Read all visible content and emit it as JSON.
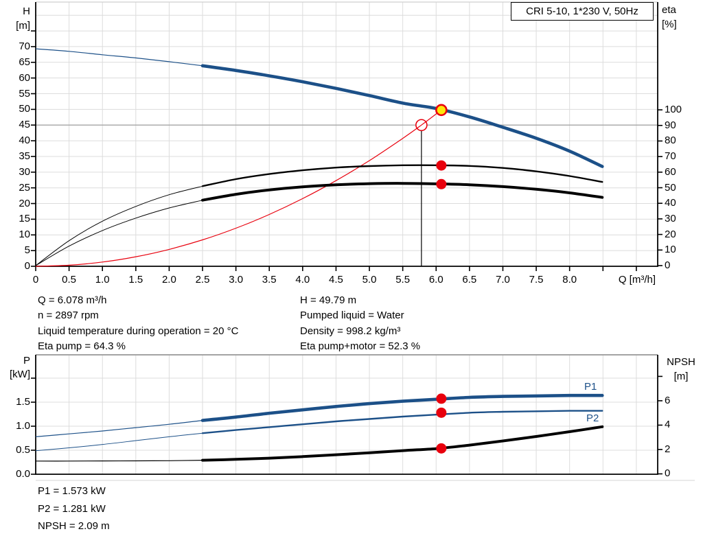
{
  "colors": {
    "curve_blue": "#1c5088",
    "curve_black": "#000000",
    "curve_red": "#e8000d",
    "marker_red": "#e8000d",
    "op_yellow": "#ffe60a",
    "grid": "#dcdcdc",
    "grid_dark": "#ababab",
    "frame_top_light": "#cfcfcf",
    "frame_top_dark": "#a3a3a3",
    "axis": "#000000"
  },
  "annotations": {
    "top_left": [
      "Q = 6.078 m³/h",
      "n = 2897 rpm",
      "Liquid temperature during operation = 20 °C",
      "Eta pump = 64.3 %"
    ],
    "top_right": [
      "H = 49.79 m",
      "Pumped liquid = Water",
      "Density = 998.2 kg/m³",
      "Eta pump+motor = 52.3 %"
    ],
    "bottom": [
      "P1 = 1.573 kW",
      "P2 = 1.281 kW",
      "NPSH = 2.09 m"
    ]
  },
  "chart_data": [
    {
      "type": "line",
      "title": "CRI 5-10, 1*230 V, 50Hz",
      "x_axis": {
        "label": "Q [m³/h]",
        "min": 0,
        "max": 9.32,
        "ticks": [
          [
            0,
            "0"
          ],
          [
            0.5,
            "0.5"
          ],
          [
            1,
            "1.0"
          ],
          [
            1.5,
            "1.5"
          ],
          [
            2,
            "2.0"
          ],
          [
            2.5,
            "2.5"
          ],
          [
            3,
            "3.0"
          ],
          [
            3.5,
            "3.5"
          ],
          [
            4,
            "4.0"
          ],
          [
            4.5,
            "4.5"
          ],
          [
            5,
            "5.0"
          ],
          [
            5.5,
            "5.5"
          ],
          [
            6,
            "6.0"
          ],
          [
            6.5,
            "6.5"
          ],
          [
            7,
            "7.0"
          ],
          [
            7.5,
            "7.5"
          ],
          [
            8,
            "8.0"
          ],
          [
            8.5,
            ""
          ],
          [
            9,
            ""
          ]
        ]
      },
      "y_left": {
        "name": "H",
        "unit": "[m]",
        "min": 0,
        "max": 84.2,
        "ticks": [
          [
            0,
            "0"
          ],
          [
            5,
            "5"
          ],
          [
            10,
            "10"
          ],
          [
            15,
            "15"
          ],
          [
            20,
            "20"
          ],
          [
            25,
            "25"
          ],
          [
            30,
            "30"
          ],
          [
            35,
            "35"
          ],
          [
            40,
            "40"
          ],
          [
            45,
            "45"
          ],
          [
            50,
            "50"
          ],
          [
            55,
            "55"
          ],
          [
            60,
            "60"
          ],
          [
            65,
            "65"
          ],
          [
            70,
            "70"
          ],
          [
            75,
            ""
          ]
        ]
      },
      "y_right": {
        "name": "eta",
        "unit": "[%]",
        "min": -0.44,
        "max": 169.2,
        "ticks": [
          [
            0,
            "0"
          ],
          [
            10,
            "10"
          ],
          [
            20,
            "20"
          ],
          [
            30,
            "30"
          ],
          [
            40,
            "40"
          ],
          [
            50,
            "50"
          ],
          [
            60,
            "60"
          ],
          [
            70,
            "70"
          ],
          [
            80,
            "80"
          ],
          [
            90,
            "90"
          ],
          [
            100,
            "100"
          ]
        ]
      },
      "grid": {
        "x_step": 0.5,
        "y_step": 5,
        "y_max": 80,
        "dark_y": 45
      },
      "duty_line": {
        "x": 5.78,
        "y": 45
      },
      "series": [
        {
          "name": "system-curve",
          "color": "#e8000d",
          "axis": "left",
          "width_thin": 1.2,
          "width_thick": null,
          "split_q": null,
          "points": [
            [
              0,
              0
            ],
            [
              0.5,
              0.34
            ],
            [
              1,
              1.35
            ],
            [
              1.5,
              3.03
            ],
            [
              2,
              5.39
            ],
            [
              2.5,
              8.42
            ],
            [
              3,
              12.13
            ],
            [
              3.5,
              16.51
            ],
            [
              4,
              21.56
            ],
            [
              4.5,
              27.29
            ],
            [
              5,
              33.69
            ],
            [
              5.5,
              40.77
            ],
            [
              5.78,
              45.0
            ],
            [
              6.078,
              49.79
            ]
          ]
        },
        {
          "name": "eta-pump-curve",
          "color": "#000000",
          "axis": "right",
          "width_thin": 1,
          "width_thick": 2.4,
          "split_q": 2.5,
          "points": [
            [
              0,
              0
            ],
            [
              0.5,
              16
            ],
            [
              1,
              28.5
            ],
            [
              1.5,
              38
            ],
            [
              2,
              45.5
            ],
            [
              2.5,
              51
            ],
            [
              3,
              55.5
            ],
            [
              3.5,
              58.8
            ],
            [
              4,
              61.2
            ],
            [
              4.5,
              62.9
            ],
            [
              5,
              63.9
            ],
            [
              5.5,
              64.4
            ],
            [
              6,
              64.4
            ],
            [
              6.5,
              64
            ],
            [
              7,
              62.7
            ],
            [
              7.5,
              60.5
            ],
            [
              8,
              57.5
            ],
            [
              8.49,
              53.7
            ]
          ]
        },
        {
          "name": "eta-pump-motor-curve",
          "color": "#000000",
          "axis": "right",
          "width_thin": 1,
          "width_thick": 4,
          "split_q": 2.5,
          "points": [
            [
              0,
              0
            ],
            [
              0.5,
              12.5
            ],
            [
              1,
              22.5
            ],
            [
              1.5,
              30.5
            ],
            [
              2,
              37
            ],
            [
              2.5,
              42
            ],
            [
              3,
              45.8
            ],
            [
              3.5,
              48.6
            ],
            [
              4,
              50.6
            ],
            [
              4.5,
              51.9
            ],
            [
              5,
              52.6
            ],
            [
              5.5,
              52.8
            ],
            [
              6,
              52.5
            ],
            [
              6.5,
              51.9
            ],
            [
              7,
              50.7
            ],
            [
              7.5,
              49
            ],
            [
              8,
              46.7
            ],
            [
              8.49,
              43.8
            ]
          ]
        },
        {
          "name": "pump-curve",
          "color": "#1c5088",
          "axis": "left",
          "width_thin": 1.2,
          "width_thick": 4.6,
          "split_q": 2.5,
          "points": [
            [
              0,
              69.3
            ],
            [
              0.5,
              68.5
            ],
            [
              1,
              67.4
            ],
            [
              1.5,
              66.4
            ],
            [
              2,
              65.2
            ],
            [
              2.5,
              63.9
            ],
            [
              3,
              62.4
            ],
            [
              3.5,
              60.7
            ],
            [
              4,
              58.8
            ],
            [
              4.5,
              56.7
            ],
            [
              5,
              54.4
            ],
            [
              5.5,
              52.0
            ],
            [
              6,
              50.3
            ],
            [
              6.5,
              47.6
            ],
            [
              7,
              44.3
            ],
            [
              7.5,
              40.8
            ],
            [
              8,
              36.7
            ],
            [
              8.49,
              31.8
            ]
          ]
        }
      ],
      "markers": [
        {
          "name": "duty-point",
          "style": "open-circle",
          "x": 5.78,
          "y": 45,
          "axis": "left",
          "r": 8
        },
        {
          "name": "eta-pump-point",
          "style": "dot",
          "x": 6.078,
          "y": 64.3,
          "axis": "right",
          "r": 7.5
        },
        {
          "name": "eta-pump-motor-point",
          "style": "dot",
          "x": 6.078,
          "y": 52.3,
          "axis": "right",
          "r": 7.5
        },
        {
          "name": "operating-point",
          "style": "ring-dot",
          "x": 6.078,
          "y": 49.79,
          "axis": "left",
          "r": 7.5
        }
      ]
    },
    {
      "type": "line",
      "x_axis": {
        "label": "",
        "min": 0,
        "max": 9.32,
        "ticks": []
      },
      "y_left": {
        "name": "P",
        "unit": "[kW]",
        "min": 0,
        "max": 2.486,
        "ticks": [
          [
            0,
            "0.0"
          ],
          [
            0.5,
            "0.5"
          ],
          [
            1,
            "1.0"
          ],
          [
            1.5,
            "1.5"
          ],
          [
            2,
            ""
          ]
        ]
      },
      "y_right": {
        "name": "NPSH",
        "unit": "[m]",
        "min": -0.03,
        "max": 9.77,
        "ticks": [
          [
            0,
            "0"
          ],
          [
            2,
            "2"
          ],
          [
            4,
            "4"
          ],
          [
            6,
            "6"
          ],
          [
            8,
            ""
          ]
        ]
      },
      "grid": {
        "x_step": 0.5,
        "y_step": 0.5,
        "y_max": 2,
        "dark_y": null
      },
      "duty_line": null,
      "series": [
        {
          "name": "p2-curve",
          "color": "#1c5088",
          "axis": "left",
          "width_thin": 1,
          "width_thick": 2.4,
          "split_q": 2.5,
          "points": [
            [
              0,
              0.49
            ],
            [
              0.5,
              0.55
            ],
            [
              1,
              0.62
            ],
            [
              1.5,
              0.7
            ],
            [
              2,
              0.78
            ],
            [
              2.5,
              0.855
            ],
            [
              3,
              0.92
            ],
            [
              3.5,
              0.98
            ],
            [
              4,
              1.04
            ],
            [
              4.5,
              1.1
            ],
            [
              5,
              1.15
            ],
            [
              5.5,
              1.2
            ],
            [
              6,
              1.24
            ],
            [
              6.5,
              1.28
            ],
            [
              7,
              1.3
            ],
            [
              7.5,
              1.31
            ],
            [
              8,
              1.32
            ],
            [
              8.49,
              1.32
            ]
          ]
        },
        {
          "name": "p1-curve",
          "color": "#1c5088",
          "axis": "left",
          "width_thin": 1.2,
          "width_thick": 4.6,
          "split_q": 2.5,
          "points": [
            [
              0,
              0.78
            ],
            [
              0.5,
              0.84
            ],
            [
              1,
              0.9
            ],
            [
              1.5,
              0.97
            ],
            [
              2,
              1.04
            ],
            [
              2.5,
              1.12
            ],
            [
              3,
              1.19
            ],
            [
              3.5,
              1.27
            ],
            [
              4,
              1.34
            ],
            [
              4.5,
              1.41
            ],
            [
              5,
              1.47
            ],
            [
              5.5,
              1.52
            ],
            [
              6,
              1.56
            ],
            [
              6.5,
              1.6
            ],
            [
              7,
              1.62
            ],
            [
              7.5,
              1.63
            ],
            [
              8,
              1.64
            ],
            [
              8.49,
              1.64
            ]
          ]
        },
        {
          "name": "npsh-curve",
          "color": "#000000",
          "axis": "right",
          "width_thin": 1.2,
          "width_thick": 4,
          "split_q": 2.5,
          "points": [
            [
              0,
              1.05
            ],
            [
              0.5,
              1.05
            ],
            [
              1,
              1.06
            ],
            [
              1.5,
              1.07
            ],
            [
              2,
              1.08
            ],
            [
              2.5,
              1.12
            ],
            [
              3,
              1.19
            ],
            [
              3.5,
              1.29
            ],
            [
              4,
              1.42
            ],
            [
              4.5,
              1.57
            ],
            [
              5,
              1.73
            ],
            [
              5.5,
              1.91
            ],
            [
              6,
              2.07
            ],
            [
              6.5,
              2.36
            ],
            [
              7,
              2.7
            ],
            [
              7.5,
              3.07
            ],
            [
              8,
              3.46
            ],
            [
              8.49,
              3.87
            ]
          ]
        }
      ],
      "markers": [
        {
          "name": "p1-point",
          "style": "dot",
          "x": 6.078,
          "y": 1.573,
          "axis": "left",
          "r": 7.5
        },
        {
          "name": "p2-point",
          "style": "dot",
          "x": 6.078,
          "y": 1.281,
          "axis": "left",
          "r": 7.5
        },
        {
          "name": "npsh-point",
          "style": "dot",
          "x": 6.078,
          "y": 2.09,
          "axis": "right",
          "r": 7.5
        }
      ],
      "series_labels": [
        {
          "text": "P1"
        },
        {
          "text": "P2"
        }
      ]
    }
  ]
}
